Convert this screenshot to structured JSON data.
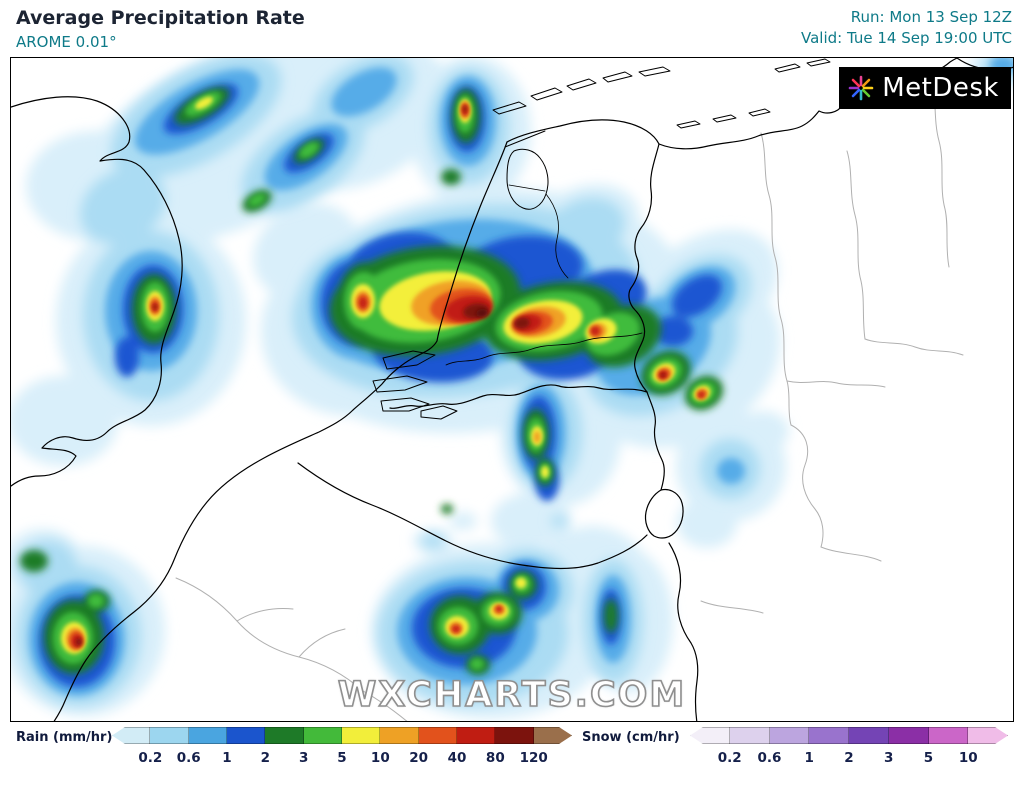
{
  "header": {
    "title": "Average Precipitation Rate",
    "model": "AROME 0.01°",
    "run_label": "Run: Mon 13 Sep 12Z",
    "valid_label": "Valid: Tue 14 Sep 19:00 UTC"
  },
  "branding": {
    "logo_text": "MetDesk",
    "watermark": "WXCHARTS.COM"
  },
  "colors": {
    "accent_teal": "#0e7a88",
    "title_color": "#1c2433",
    "tick_color": "#15204a",
    "country_border": "#000000",
    "state_border": "#b0b0b0"
  },
  "legend": {
    "rain": {
      "label": "Rain (mm/hr)",
      "ticks": [
        "0.2",
        "0.6",
        "1",
        "2",
        "3",
        "5",
        "10",
        "20",
        "40",
        "80",
        "120"
      ],
      "colors": [
        "#d2ecf6",
        "#9cd6ef",
        "#4aa5e0",
        "#1b55cd",
        "#1e7a28",
        "#43ba3a",
        "#f2ee3a",
        "#eea125",
        "#e2521c",
        "#c01d12",
        "#7c130d",
        "#9a6f4b"
      ]
    },
    "snow": {
      "label": "Snow (cm/hr)",
      "ticks": [
        "0.2",
        "0.6",
        "1",
        "2",
        "3",
        "5",
        "10"
      ],
      "colors": [
        "#f3eff8",
        "#ddd1ed",
        "#bca5df",
        "#9973cd",
        "#7444b5",
        "#8b2fa6",
        "#cb66c8",
        "#f0bce8"
      ]
    }
  }
}
